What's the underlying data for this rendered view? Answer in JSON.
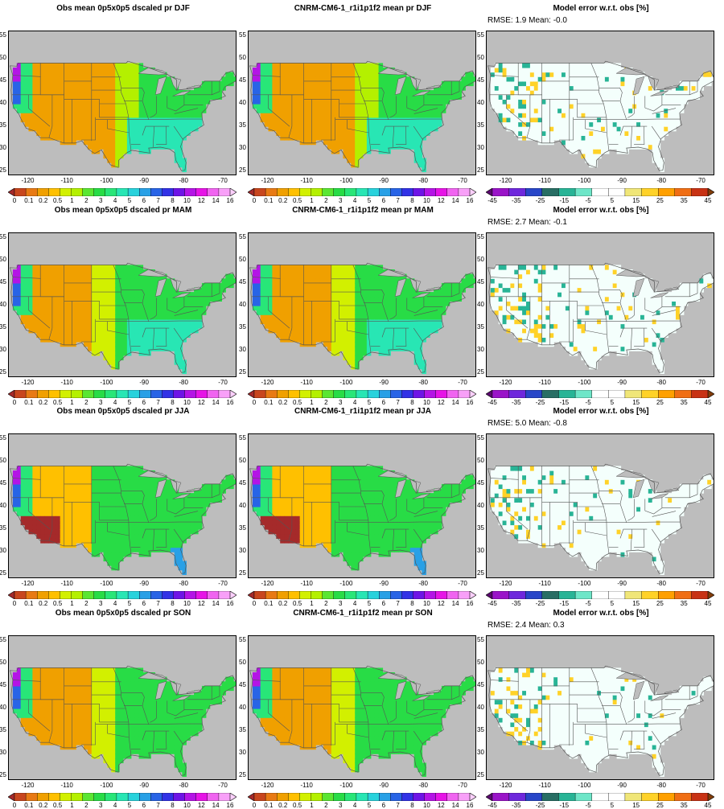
{
  "palettes": {
    "precip": [
      "#a52a2a",
      "#c8461e",
      "#e87a14",
      "#f0a000",
      "#ffc000",
      "#d2f000",
      "#b4f000",
      "#5ae632",
      "#28dc46",
      "#28e678",
      "#28e6b4",
      "#28d2dc",
      "#28a0e6",
      "#2864e6",
      "#3232e6",
      "#6e14e6",
      "#b414e6",
      "#e614e6",
      "#f064f0",
      "#f8a0f8",
      "#fcd0fc"
    ],
    "error": [
      "#5a0a6e",
      "#9a14c8",
      "#6e28dc",
      "#2846c8",
      "#286e64",
      "#28b496",
      "#6ee6c8",
      "#ffffff",
      "#ffffff",
      "#f0e678",
      "#ffd228",
      "#ffa000",
      "#f06e14",
      "#c83214",
      "#823c0a"
    ]
  },
  "colorbars": {
    "precip": [
      "0",
      "0.1",
      "0.2",
      "0.5",
      "1",
      "2",
      "3",
      "4",
      "5",
      "6",
      "7",
      "8",
      "10",
      "12",
      "14",
      "16"
    ],
    "error": [
      "-45",
      "-35",
      "-25",
      "-15",
      "-5",
      "5",
      "15",
      "25",
      "35",
      "45"
    ]
  },
  "axes": {
    "lon_ticks": [
      "-120",
      "-110",
      "-100",
      "-90",
      "-80",
      "-70"
    ],
    "lat_ticks": [
      "25",
      "30",
      "35",
      "40",
      "45",
      "50",
      "55"
    ]
  },
  "chart_data": [
    {
      "type": "heatmap",
      "title": "Obs mean 0p5x0p5 dscaled pr DJF",
      "season": "DJF",
      "kind": "obs",
      "xlim": [
        -125,
        -67
      ],
      "ylim": [
        24,
        56
      ]
    },
    {
      "type": "heatmap",
      "title": "CNRM-CM6-1_r1i1p1f2 mean pr DJF",
      "season": "DJF",
      "kind": "model",
      "xlim": [
        -125,
        -67
      ],
      "ylim": [
        24,
        56
      ]
    },
    {
      "type": "heatmap",
      "title": "Model error w.r.t. obs [%]",
      "season": "DJF",
      "kind": "error",
      "stats": "RMSE: 1.9  Mean: -0.0",
      "rmse": 1.9,
      "mean": -0.0,
      "xlim": [
        -125,
        -67
      ],
      "ylim": [
        24,
        56
      ]
    },
    {
      "type": "heatmap",
      "title": "Obs mean 0p5x0p5 dscaled pr MAM",
      "season": "MAM",
      "kind": "obs",
      "xlim": [
        -125,
        -67
      ],
      "ylim": [
        24,
        56
      ]
    },
    {
      "type": "heatmap",
      "title": "CNRM-CM6-1_r1i1p1f2 mean pr MAM",
      "season": "MAM",
      "kind": "model",
      "xlim": [
        -125,
        -67
      ],
      "ylim": [
        24,
        56
      ]
    },
    {
      "type": "heatmap",
      "title": "Model error w.r.t. obs [%]",
      "season": "MAM",
      "kind": "error",
      "stats": "RMSE: 2.7  Mean: -0.1",
      "rmse": 2.7,
      "mean": -0.1,
      "xlim": [
        -125,
        -67
      ],
      "ylim": [
        24,
        56
      ]
    },
    {
      "type": "heatmap",
      "title": "Obs mean 0p5x0p5 dscaled pr JJA",
      "season": "JJA",
      "kind": "obs",
      "xlim": [
        -125,
        -67
      ],
      "ylim": [
        24,
        56
      ]
    },
    {
      "type": "heatmap",
      "title": "CNRM-CM6-1_r1i1p1f2 mean pr JJA",
      "season": "JJA",
      "kind": "model",
      "xlim": [
        -125,
        -67
      ],
      "ylim": [
        24,
        56
      ]
    },
    {
      "type": "heatmap",
      "title": "Model error w.r.t. obs [%]",
      "season": "JJA",
      "kind": "error",
      "stats": "RMSE: 5.0  Mean: -0.8",
      "rmse": 5.0,
      "mean": -0.8,
      "xlim": [
        -125,
        -67
      ],
      "ylim": [
        24,
        56
      ]
    },
    {
      "type": "heatmap",
      "title": "Obs mean 0p5x0p5 dscaled pr SON",
      "season": "SON",
      "kind": "obs",
      "xlim": [
        -125,
        -67
      ],
      "ylim": [
        24,
        56
      ]
    },
    {
      "type": "heatmap",
      "title": "CNRM-CM6-1_r1i1p1f2 mean pr SON",
      "season": "SON",
      "kind": "model",
      "xlim": [
        -125,
        -67
      ],
      "ylim": [
        24,
        56
      ]
    },
    {
      "type": "heatmap",
      "title": "Model error w.r.t. obs [%]",
      "season": "SON",
      "kind": "error",
      "stats": "RMSE: 2.4  Mean: 0.3",
      "rmse": 2.4,
      "mean": 0.3,
      "xlim": [
        -125,
        -67
      ],
      "ylim": [
        24,
        56
      ]
    }
  ]
}
